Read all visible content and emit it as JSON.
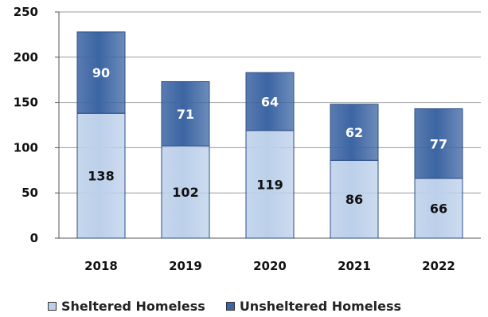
{
  "chart_data": {
    "type": "bar",
    "stacked": true,
    "categories": [
      "2018",
      "2019",
      "2020",
      "2021",
      "2022"
    ],
    "series": [
      {
        "name": "Sheltered Homeless",
        "values": [
          138,
          102,
          119,
          86,
          66
        ],
        "color": "#bcd0ea"
      },
      {
        "name": "Unsheltered Homeless",
        "values": [
          90,
          71,
          64,
          62,
          77
        ],
        "color": "#3c65a3"
      }
    ],
    "ylim": [
      0,
      250
    ],
    "yticks": [
      0,
      50,
      100,
      150,
      200,
      250
    ],
    "grid": true,
    "legend_position": "bottom",
    "colors": {
      "sheltered_label": "#111111",
      "unsheltered_label": "#ffffff",
      "grid": "#9a9a9a",
      "axis": "#555555"
    }
  }
}
